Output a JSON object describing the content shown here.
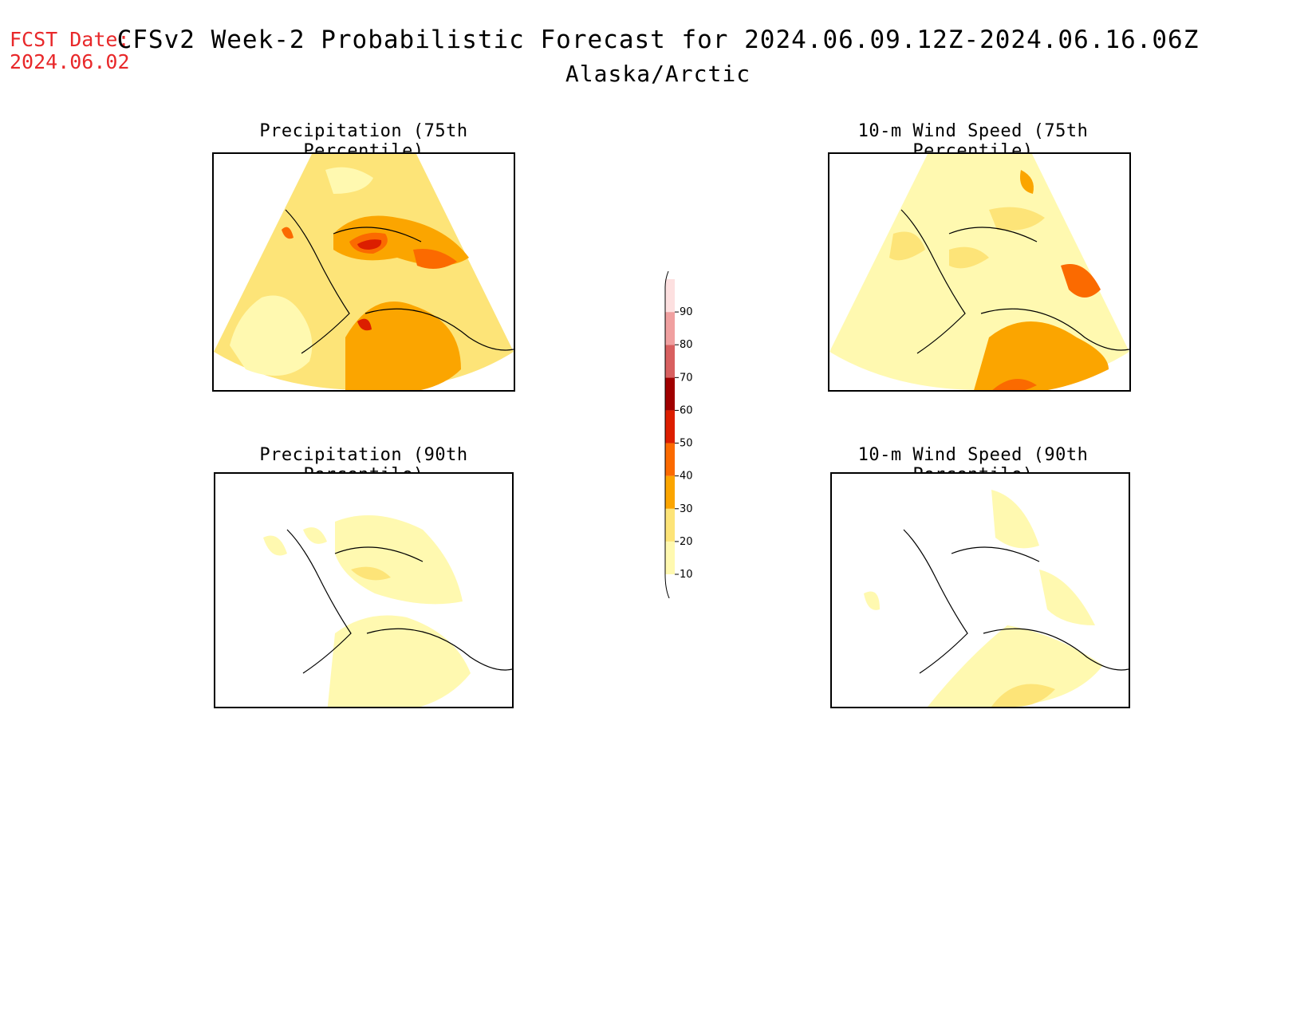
{
  "header": {
    "fcst_label": "FCST Date:",
    "fcst_date": "2024.06.02",
    "title": "CFSv2 Week-2 Probabilistic Forecast for 2024.06.09.12Z-2024.06.16.06Z",
    "subtitle": "Alaska/Arctic"
  },
  "panels": [
    {
      "title": "Precipitation (75th Percentile)"
    },
    {
      "title": "10-m Wind Speed (75th Percentile)"
    },
    {
      "title": "Precipitation (90th Percentile)"
    },
    {
      "title": "10-m Wind Speed (90th Percentile)"
    }
  ],
  "colorbar": {
    "levels": [
      "10",
      "20",
      "30",
      "40",
      "50",
      "60",
      "70",
      "80",
      "90"
    ],
    "colors": [
      "#fff9b0",
      "#fde478",
      "#fba500",
      "#fb6a00",
      "#dc1e00",
      "#a00000",
      "#d86060",
      "#f0a0a0",
      "#fde0e0"
    ]
  }
}
